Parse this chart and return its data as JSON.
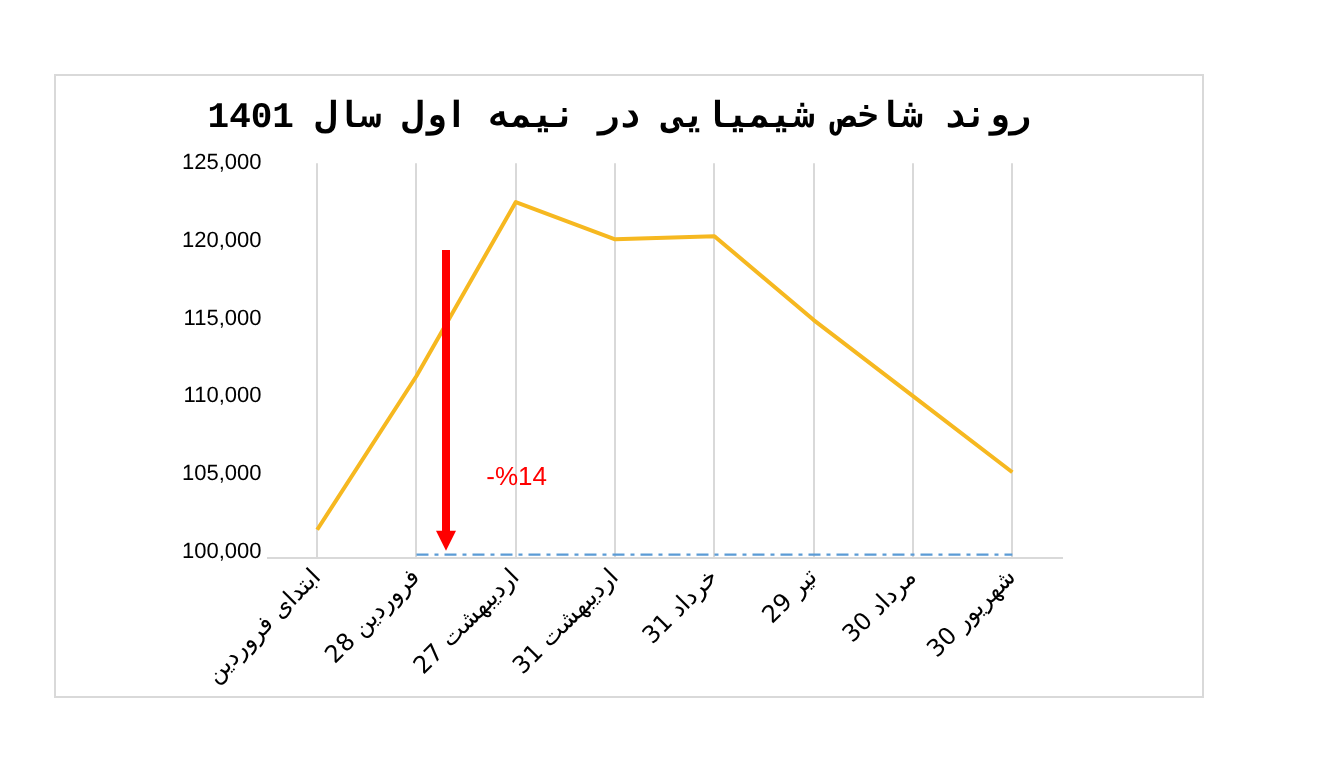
{
  "chart_data": {
    "type": "line",
    "title": "روند شاخص شیمیایی در نیمه اول سال 1401",
    "categories": [
      "ابتدای فروردین",
      "28 فروردین",
      "27 اردیبهشت",
      "31 اردیبهشت",
      "31 خرداد",
      "29 تیر",
      "30 مرداد",
      "30 شهریور"
    ],
    "series": [
      {
        "color": "#f6b820",
        "values": [
          101400,
          111300,
          122500,
          120100,
          120300,
          114900,
          110000,
          105100
        ]
      },
      {
        "color": "#5b9bd5",
        "line_style": "dashed",
        "values": [
          null,
          99800,
          99800,
          99800,
          99800,
          99800,
          99800,
          99800
        ]
      }
    ],
    "ylim": [
      99600,
      125000
    ],
    "yticks": [
      {
        "value": 100000,
        "label": "100,000"
      },
      {
        "value": 105000,
        "label": "105,000"
      },
      {
        "value": 110000,
        "label": "110,000"
      },
      {
        "value": 115000,
        "label": "115,000"
      },
      {
        "value": 120000,
        "label": "120,000"
      },
      {
        "value": 125000,
        "label": "125,000"
      }
    ],
    "grid": "x",
    "legend": false,
    "marker": "none",
    "line_style": "solid",
    "annotations": [
      "-%14"
    ]
  }
}
